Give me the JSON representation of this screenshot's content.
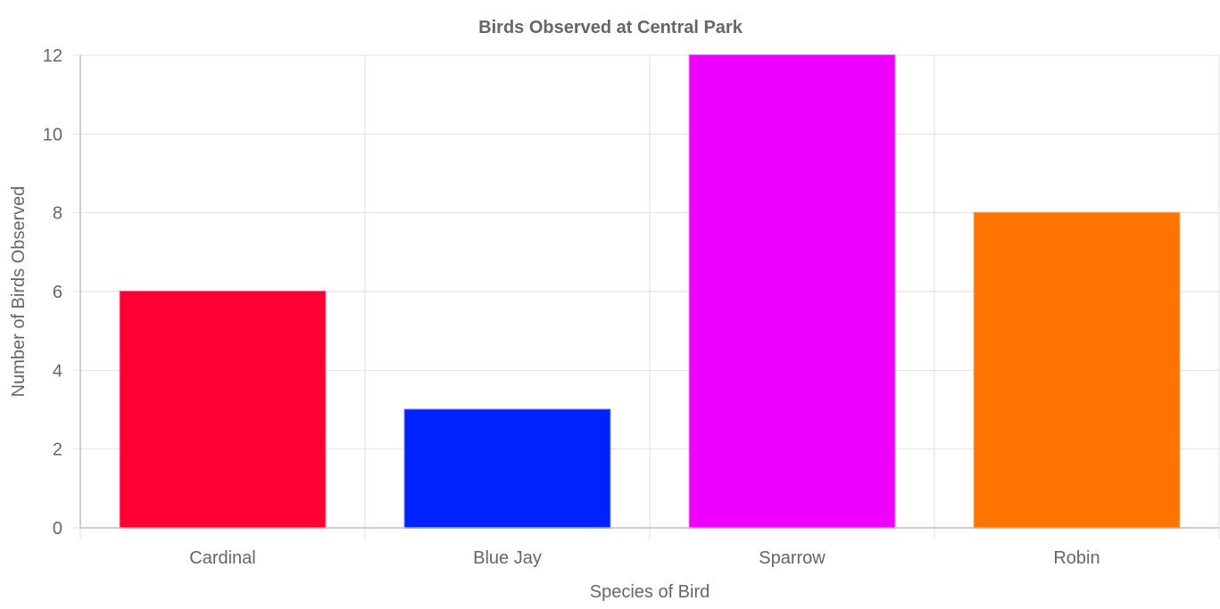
{
  "chart_data": {
    "type": "bar",
    "title": "Birds Observed at Central Park",
    "xlabel": "Species of Bird",
    "ylabel": "Number of Birds Observed",
    "categories": [
      "Cardinal",
      "Blue Jay",
      "Sparrow",
      "Robin"
    ],
    "values": [
      6,
      3,
      12,
      8
    ],
    "colors": [
      "#ff0033",
      "#0022ff",
      "#ee00ff",
      "#ff7300"
    ],
    "ylim": [
      0,
      12
    ],
    "yticks": [
      0,
      2,
      4,
      6,
      8,
      10,
      12
    ],
    "grid": true,
    "legend": "none"
  }
}
